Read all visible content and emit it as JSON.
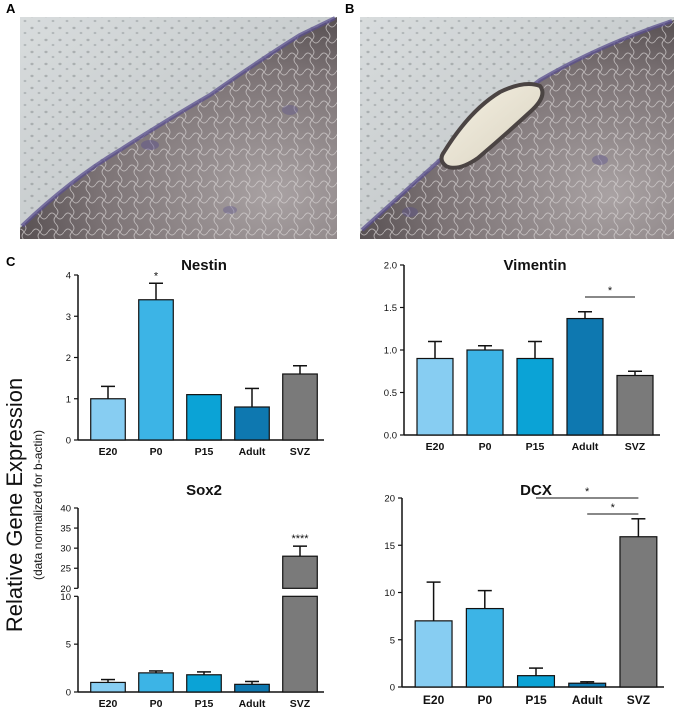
{
  "panels": {
    "a": "A",
    "b": "B",
    "c": "C"
  },
  "y_axis": {
    "main": "Relative Gene Expression",
    "sub": "(data normalized for b-actin)"
  },
  "colors": {
    "E20": "#87cdf2",
    "P0": "#3cb4e6",
    "P15": "#0ba3d6",
    "Adult": "#0e78b0",
    "SVZ": "#7a7a7a"
  },
  "chart_data": [
    {
      "type": "bar",
      "title": "Nestin",
      "categories": [
        "E20",
        "P0",
        "P15",
        "Adult",
        "SVZ"
      ],
      "values": [
        1.0,
        3.4,
        1.1,
        0.8,
        1.6
      ],
      "errors": [
        0.3,
        0.4,
        0.0,
        0.45,
        0.2
      ],
      "ylim": [
        0,
        4
      ],
      "yticks": [
        "0",
        "1",
        "2",
        "3",
        "4"
      ],
      "annotations": [
        {
          "category": "P0",
          "text": "*"
        }
      ],
      "significance_bars": []
    },
    {
      "type": "bar",
      "title": "Vimentin",
      "categories": [
        "E20",
        "P0",
        "P15",
        "Adult",
        "SVZ"
      ],
      "values": [
        0.9,
        1.0,
        0.9,
        1.37,
        0.7
      ],
      "errors": [
        0.2,
        0.05,
        0.2,
        0.08,
        0.05
      ],
      "ylim": [
        0,
        2.0
      ],
      "yticks": [
        "0.0",
        "0.5",
        "1.0",
        "1.5",
        "2.0"
      ],
      "annotations": [],
      "significance_bars": [
        {
          "from": "Adult",
          "to": "SVZ",
          "text": "*"
        }
      ]
    },
    {
      "type": "bar",
      "title": "Sox2",
      "categories": [
        "E20",
        "P0",
        "P15",
        "Adult",
        "SVZ"
      ],
      "values": [
        1.0,
        2.0,
        1.8,
        0.8,
        28.0
      ],
      "errors": [
        0.3,
        0.2,
        0.3,
        0.3,
        2.5
      ],
      "ylim": [
        0,
        40
      ],
      "axis_break": [
        10,
        20
      ],
      "yticks": [
        "0",
        "5",
        "10",
        "20",
        "25",
        "30",
        "35",
        "40"
      ],
      "annotations": [
        {
          "category": "SVZ",
          "text": "****"
        }
      ],
      "significance_bars": []
    },
    {
      "type": "bar",
      "title": "DCX",
      "categories": [
        "E20",
        "P0",
        "P15",
        "Adult",
        "SVZ"
      ],
      "values": [
        7.0,
        8.3,
        1.2,
        0.4,
        15.9
      ],
      "errors": [
        4.1,
        1.9,
        0.8,
        0.15,
        1.9
      ],
      "ylim": [
        0,
        20
      ],
      "yticks": [
        "0",
        "5",
        "10",
        "15",
        "20"
      ],
      "annotations": [],
      "significance_bars": [
        {
          "from": "P15",
          "to": "SVZ",
          "text": "*"
        },
        {
          "from": "Adult",
          "to": "SVZ",
          "text": "*"
        }
      ]
    }
  ]
}
